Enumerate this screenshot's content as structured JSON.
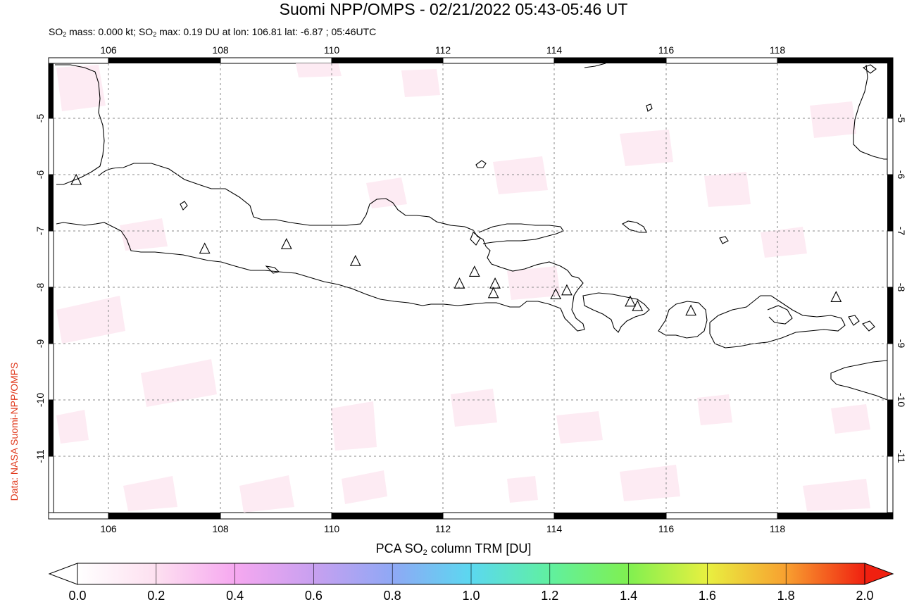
{
  "title": "Suomi NPP/OMPS - 02/21/2022 05:43-05:46 UT",
  "subtitle": {
    "so2_mass_prefix": "SO",
    "so2_mass_sub": "2",
    "so2_mass_text": " mass: 0.000 kt; SO",
    "so2_max_sub": "2",
    "so2_max_text": " max: 0.19 DU at lon: 106.81 lat: -6.87 ; 05:46UTC"
  },
  "credit": "Data: NASA Suomi-NPP/OMPS",
  "map": {
    "region": "Java, Bali and Lombok, Indonesia",
    "lon_range": [
      104.9,
      120.0
    ],
    "lat_range": [
      -12.05,
      -4.0
    ],
    "lon_ticks": [
      "106",
      "108",
      "110",
      "112",
      "114",
      "116",
      "118"
    ],
    "lat_ticks": [
      "-5",
      "-6",
      "-7",
      "-8",
      "-9",
      "-10",
      "-11"
    ],
    "volcano_markers": "triangle",
    "volcanoes": [
      {
        "lon": 105.42,
        "lat": -6.1
      },
      {
        "lon": 107.73,
        "lat": -7.32
      },
      {
        "lon": 109.2,
        "lat": -7.24
      },
      {
        "lon": 110.44,
        "lat": -7.54
      },
      {
        "lon": 112.31,
        "lat": -7.94
      },
      {
        "lon": 112.58,
        "lat": -7.73
      },
      {
        "lon": 112.95,
        "lat": -7.94
      },
      {
        "lon": 112.92,
        "lat": -8.11
      },
      {
        "lon": 114.04,
        "lat": -8.13
      },
      {
        "lon": 114.24,
        "lat": -8.06
      },
      {
        "lon": 115.38,
        "lat": -8.26
      },
      {
        "lon": 115.51,
        "lat": -8.34
      },
      {
        "lon": 116.47,
        "lat": -8.42
      },
      {
        "lon": 119.08,
        "lat": -8.18
      }
    ],
    "grid": "dashed gray",
    "coastline_color": "#000000"
  },
  "colorbar": {
    "label_prefix": "PCA SO",
    "label_sub": "2",
    "label_suffix": " column TRM [DU]",
    "ticks": [
      "0.0",
      "0.2",
      "0.4",
      "0.6",
      "0.8",
      "1.0",
      "1.2",
      "1.4",
      "1.6",
      "1.8",
      "2.0"
    ],
    "range": [
      0.0,
      2.0
    ],
    "colors": [
      "#ffffff",
      "#fde0f0",
      "#f6a8f0",
      "#c8a0f0",
      "#8fa8f5",
      "#5bd8f0",
      "#60f0a0",
      "#80f050",
      "#e8f040",
      "#f8a030",
      "#f02010"
    ]
  }
}
